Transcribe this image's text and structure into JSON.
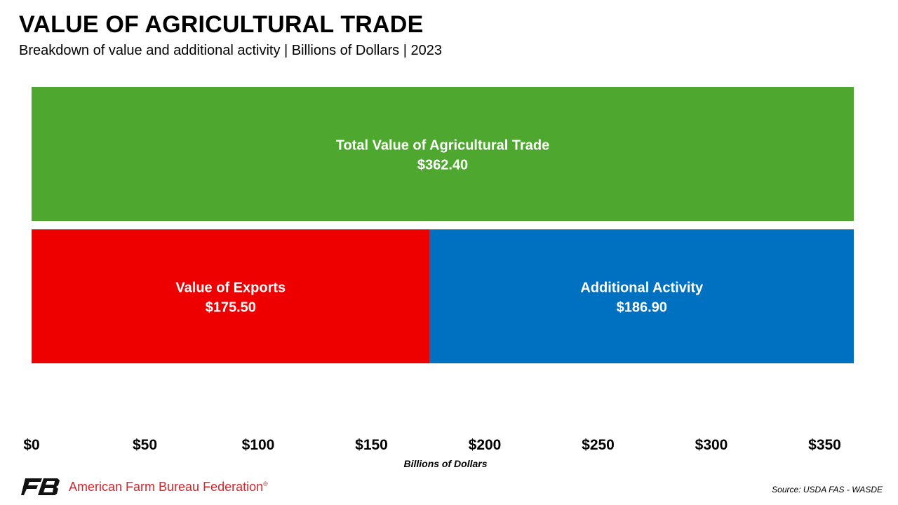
{
  "header": {
    "title": "VALUE OF AGRICULTURAL TRADE",
    "subtitle": "Breakdown of value and additional activity | Billions of Dollars | 2023"
  },
  "chart_data": {
    "type": "bar",
    "orientation": "horizontal-stacked",
    "title": "VALUE OF AGRICULTURAL TRADE",
    "xlabel": "Billions of Dollars",
    "xlim": [
      0,
      362.4
    ],
    "x_ticks": [
      0,
      50,
      100,
      150,
      200,
      250,
      300,
      350
    ],
    "x_tick_labels": [
      "$0",
      "$50",
      "$100",
      "$150",
      "$200",
      "$250",
      "$300",
      "$350"
    ],
    "rows": [
      {
        "segments": [
          {
            "name": "Total Value of Agricultural Trade",
            "value": 362.4,
            "label": "$362.40",
            "color": "#4ea72e"
          }
        ]
      },
      {
        "segments": [
          {
            "name": "Value of Exports",
            "value": 175.5,
            "label": "$175.50",
            "color": "#ee0000"
          },
          {
            "name": "Additional Activity",
            "value": 186.9,
            "label": "$186.90",
            "color": "#0070c0"
          }
        ]
      }
    ],
    "grid": false,
    "legend": "none"
  },
  "footer": {
    "org_name": "American Farm Bureau Federation",
    "org_mark": "®",
    "logo_icon": "fb-logo-icon",
    "source": "Source: USDA FAS - WASDE"
  }
}
